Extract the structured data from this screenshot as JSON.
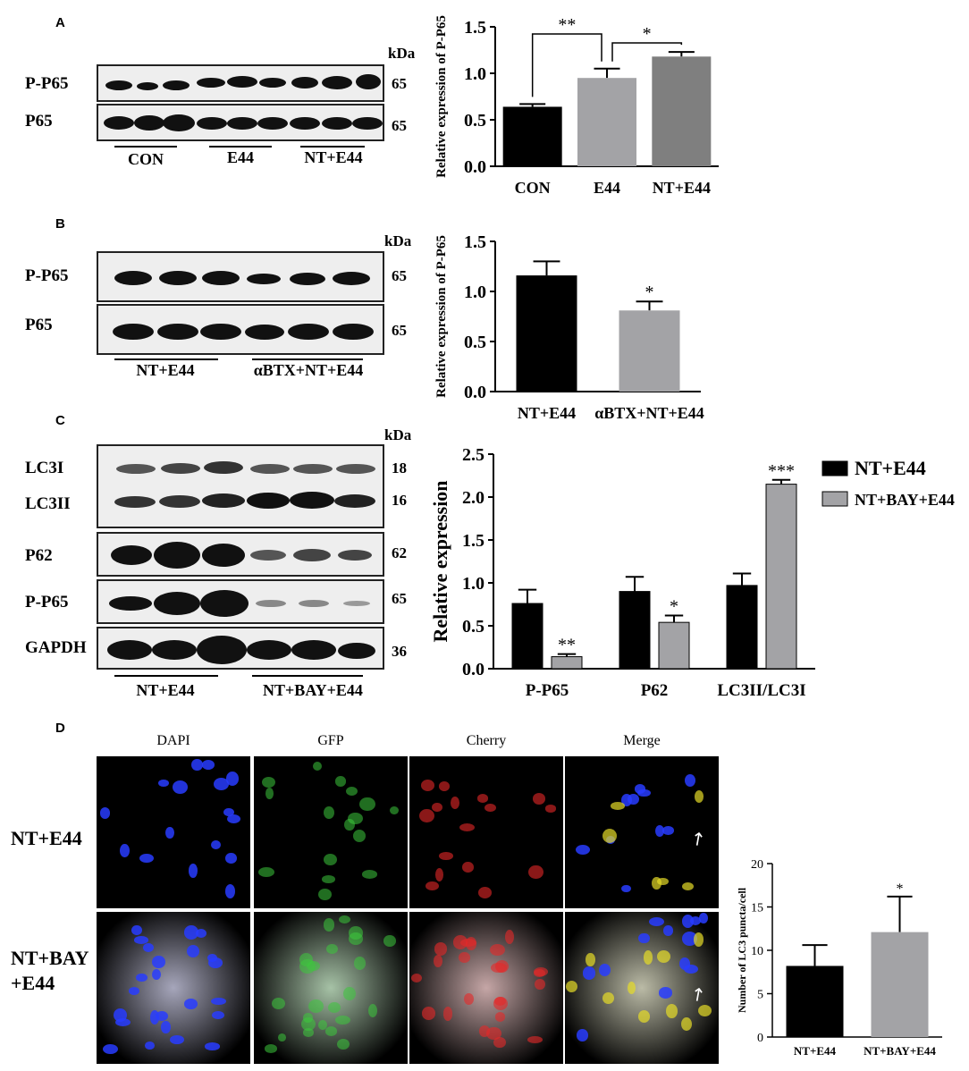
{
  "panels": {
    "a": "A",
    "b": "B",
    "c": "C",
    "d": "D"
  },
  "kda_label": "kDa",
  "blot_a": {
    "rows": [
      {
        "label": "P-P65",
        "mw": "65"
      },
      {
        "label": "P65",
        "mw": "65"
      }
    ],
    "groups": [
      "CON",
      "E44",
      "NT+E44"
    ]
  },
  "blot_b": {
    "rows": [
      {
        "label": "P-P65",
        "mw": "65"
      },
      {
        "label": "P65",
        "mw": "65"
      }
    ],
    "groups": [
      "NT+E44",
      "αBTX+NT+E44"
    ]
  },
  "blot_c": {
    "rows": [
      {
        "label": "LC3I",
        "mw": "18"
      },
      {
        "label": "LC3II",
        "mw": "16"
      },
      {
        "label": "P62",
        "mw": "62"
      },
      {
        "label": "P-P65",
        "mw": "65"
      },
      {
        "label": "GAPDH",
        "mw": "36"
      }
    ],
    "groups": [
      "NT+E44",
      "NT+BAY+E44"
    ]
  },
  "micro": {
    "columns": [
      "DAPI",
      "GFP",
      "Cherry",
      "Merge"
    ],
    "rows": [
      {
        "label": "NT+E44"
      },
      {
        "label": "NT+BAY\n+E44"
      }
    ]
  },
  "chart_data": [
    {
      "type": "bar",
      "panel": "A",
      "categories": [
        "CON",
        "E44",
        "NT+E44"
      ],
      "values": [
        0.64,
        0.95,
        1.18
      ],
      "errors": [
        0.03,
        0.1,
        0.05
      ],
      "colors": [
        "#000000",
        "#a3a3a6",
        "#7f7f7f"
      ],
      "ylabel": "Relative expression of P-P65",
      "ylim": [
        0,
        1.5
      ],
      "yticks": [
        "0.0",
        "0.5",
        "1.0",
        "1.5"
      ],
      "significance": [
        {
          "from": 0,
          "to": 1,
          "label": "**"
        },
        {
          "from": 1,
          "to": 2,
          "label": "*"
        }
      ]
    },
    {
      "type": "bar",
      "panel": "B",
      "categories": [
        "NT+E44",
        "αBTX+NT+E44"
      ],
      "values": [
        1.16,
        0.81
      ],
      "errors": [
        0.14,
        0.09
      ],
      "colors": [
        "#000000",
        "#a3a3a6"
      ],
      "ylabel": "Relative expression of P-P65",
      "ylim": [
        0,
        1.5
      ],
      "yticks": [
        "0.0",
        "0.5",
        "1.0",
        "1.5"
      ],
      "marks": [
        "",
        "*"
      ]
    },
    {
      "type": "bar",
      "panel": "C",
      "categories": [
        "P-P65",
        "P62",
        "LC3II/LC3I"
      ],
      "series": [
        {
          "name": "NT+E44",
          "values": [
            0.76,
            0.9,
            0.97
          ],
          "errors": [
            0.16,
            0.17,
            0.14
          ],
          "color": "#000000",
          "marks": [
            "",
            "",
            ""
          ]
        },
        {
          "name": "NT+BAY+E44",
          "values": [
            0.14,
            0.54,
            2.15
          ],
          "errors": [
            0.03,
            0.08,
            0.05
          ],
          "color": "#a3a3a6",
          "marks": [
            "**",
            "*",
            "***"
          ]
        }
      ],
      "ylabel": "Relative expression",
      "ylim": [
        0,
        2.5
      ],
      "yticks": [
        "0.0",
        "0.5",
        "1.0",
        "1.5",
        "2.0",
        "2.5"
      ],
      "legend": "top-right"
    },
    {
      "type": "bar",
      "panel": "D",
      "categories": [
        "NT+E44",
        "NT+BAY+E44"
      ],
      "values": [
        8.2,
        12.1
      ],
      "errors": [
        2.4,
        4.1
      ],
      "colors": [
        "#000000",
        "#a3a3a6"
      ],
      "ylabel": "Number of LC3 puncta/cell",
      "ylim": [
        0,
        20
      ],
      "yticks": [
        "0",
        "5",
        "10",
        "15",
        "20"
      ],
      "marks": [
        "",
        "*"
      ]
    }
  ]
}
